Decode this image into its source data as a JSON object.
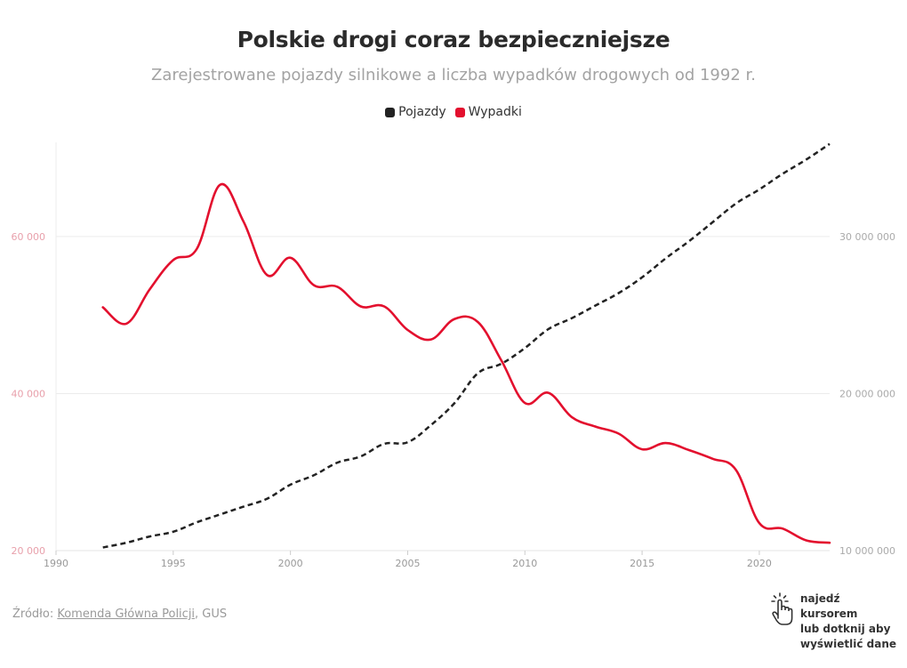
{
  "title": "Polskie drogi coraz bezpieczniejsze",
  "subtitle": "Zarejestrowane pojazdy silnikowe a liczba wypadków drogowych od 1992 r.",
  "legend": [
    {
      "label": "Pojazdy",
      "color": "#222222"
    },
    {
      "label": "Wypadki",
      "color": "#e3102e"
    }
  ],
  "source": {
    "prefix": "Źródło: ",
    "link_text": "Komenda Główna Policji",
    "suffix": ", GUS"
  },
  "hint": {
    "icon": "hand-pointer-icon",
    "lines": [
      "najedź kursorem",
      "lub dotknij aby",
      "wyświetlić dane"
    ]
  },
  "chart_data": {
    "type": "line",
    "x_axis": {
      "range": [
        1990,
        2023
      ],
      "ticks": [
        1990,
        1995,
        2000,
        2005,
        2010,
        2015,
        2020
      ],
      "tick_labels": [
        "1990",
        "1995",
        "2000",
        "2005",
        "2010",
        "2015",
        "2020"
      ]
    },
    "y_left": {
      "range": [
        20000,
        72000
      ],
      "ticks": [
        20000,
        40000,
        60000
      ],
      "tick_labels": [
        "20 000",
        "40 000",
        "60 000"
      ],
      "color": "#e8a0ab"
    },
    "y_right": {
      "range": [
        10000000,
        36000000
      ],
      "ticks": [
        10000000,
        20000000,
        30000000
      ],
      "tick_labels": [
        "10 000 000",
        "20 000 000",
        "30 000 000"
      ],
      "color": "#aaaaaa"
    },
    "grid": true,
    "legend_position": "top-center",
    "series": [
      {
        "name": "Pojazdy",
        "axis": "right",
        "style": "dashed",
        "color": "#222222",
        "x": [
          1992,
          1993,
          1994,
          1995,
          1996,
          1997,
          1998,
          1999,
          2000,
          2001,
          2002,
          2003,
          2004,
          2005,
          2006,
          2007,
          2008,
          2009,
          2010,
          2011,
          2012,
          2013,
          2014,
          2015,
          2016,
          2017,
          2018,
          2019,
          2020,
          2021,
          2022,
          2023
        ],
        "values": [
          10200000,
          10500000,
          10900000,
          11200000,
          11800000,
          12300000,
          12800000,
          13300000,
          14200000,
          14800000,
          15600000,
          16000000,
          16800000,
          16900000,
          18000000,
          19400000,
          21300000,
          21900000,
          22900000,
          24100000,
          24800000,
          25600000,
          26400000,
          27400000,
          28600000,
          29700000,
          30900000,
          32100000,
          33000000,
          34000000,
          34900000,
          35900000
        ]
      },
      {
        "name": "Wypadki",
        "axis": "left",
        "style": "solid",
        "color": "#e3102e",
        "x": [
          1992,
          1993,
          1994,
          1995,
          1996,
          1997,
          1998,
          1999,
          2000,
          2001,
          2002,
          2003,
          2004,
          2005,
          2006,
          2007,
          2008,
          2009,
          2010,
          2011,
          2012,
          2013,
          2014,
          2015,
          2016,
          2017,
          2018,
          2019,
          2020,
          2021,
          2022,
          2023
        ],
        "values": [
          50990,
          48900,
          53300,
          57000,
          58400,
          66600,
          61900,
          55100,
          57300,
          53800,
          53600,
          51100,
          51100,
          48100,
          46900,
          49500,
          49100,
          44200,
          38800,
          40100,
          37000,
          35800,
          34900,
          32900,
          33700,
          32800,
          31700,
          30300,
          23500,
          22800,
          21300,
          21000
        ]
      }
    ]
  }
}
